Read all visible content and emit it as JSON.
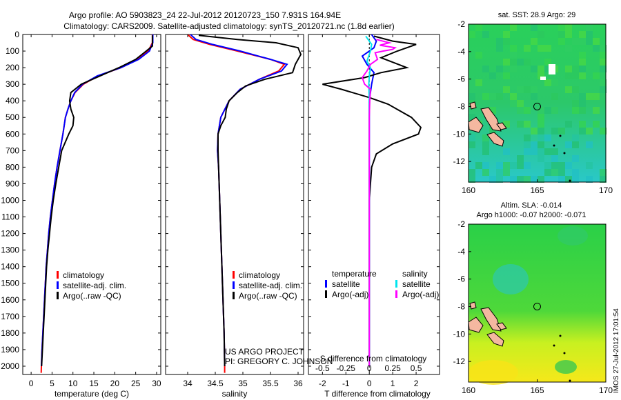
{
  "header": {
    "title_line1": "Argo profile: AO 5903823_24 22-Jul-2012 20120723_150 7.931S 164.94E",
    "title_line2": "Climatology: CARS2009. Satellite-adjusted climatology: synTS_20120721.nc (1.8d earlier)"
  },
  "colors": {
    "climatology": "#ff0000",
    "satellite": "#0000ff",
    "argo": "#000000",
    "satellite_s": "#00e5ee",
    "argo_s": "#ff00ff"
  },
  "chart_data": [
    {
      "type": "line",
      "title": "",
      "xlabel": "temperature (deg C)",
      "ylabel": "",
      "xlim": [
        -2,
        31
      ],
      "ylim": [
        2050,
        0
      ],
      "xticks": [
        0,
        5,
        10,
        15,
        20,
        25,
        30
      ],
      "yticks": [
        0,
        100,
        200,
        300,
        400,
        500,
        600,
        700,
        800,
        900,
        1000,
        1100,
        1200,
        1300,
        1400,
        1500,
        1600,
        1700,
        1800,
        1900,
        2000
      ],
      "legend": {
        "position": "bottom-center",
        "items": [
          "climatology",
          "satellite-adj. clim.",
          "Argo(..raw -QC)"
        ]
      },
      "series": [
        {
          "name": "climatology",
          "color": "#ff0000",
          "points": [
            [
              29,
              0
            ],
            [
              29,
              50
            ],
            [
              28,
              100
            ],
            [
              25.5,
              150
            ],
            [
              21.5,
              200
            ],
            [
              16,
              250
            ],
            [
              12.5,
              300
            ],
            [
              10.5,
              350
            ],
            [
              9.5,
              400
            ],
            [
              8.8,
              450
            ],
            [
              8.2,
              500
            ],
            [
              7.6,
              600
            ],
            [
              6.9,
              700
            ],
            [
              6.2,
              800
            ],
            [
              5.6,
              900
            ],
            [
              5.1,
              1000
            ],
            [
              4.6,
              1100
            ],
            [
              4.2,
              1200
            ],
            [
              3.9,
              1300
            ],
            [
              3.6,
              1400
            ],
            [
              3.4,
              1500
            ],
            [
              3.2,
              1600
            ],
            [
              3,
              1700
            ],
            [
              2.8,
              1800
            ],
            [
              2.6,
              1900
            ],
            [
              2.45,
              2000
            ],
            [
              2.4,
              2040
            ]
          ]
        },
        {
          "name": "satellite-adj. clim.",
          "color": "#0000ff",
          "points": [
            [
              29.1,
              0
            ],
            [
              29.1,
              50
            ],
            [
              28.3,
              100
            ],
            [
              25.7,
              150
            ],
            [
              21.5,
              200
            ],
            [
              15.8,
              250
            ],
            [
              12.3,
              300
            ],
            [
              10.4,
              350
            ],
            [
              9.5,
              400
            ],
            [
              8.8,
              450
            ],
            [
              8.2,
              500
            ],
            [
              7.6,
              600
            ],
            [
              6.9,
              700
            ],
            [
              6.2,
              800
            ],
            [
              5.6,
              900
            ],
            [
              5.1,
              1000
            ],
            [
              4.6,
              1100
            ],
            [
              4.2,
              1200
            ],
            [
              3.9,
              1300
            ],
            [
              3.6,
              1400
            ],
            [
              3.4,
              1500
            ],
            [
              3.2,
              1600
            ],
            [
              3,
              1700
            ],
            [
              2.8,
              1800
            ],
            [
              2.6,
              1900
            ],
            [
              2.45,
              2000
            ]
          ]
        },
        {
          "name": "Argo(..raw -QC)",
          "color": "#000000",
          "points": [
            [
              29,
              5
            ],
            [
              29,
              40
            ],
            [
              29,
              70
            ],
            [
              27,
              110
            ],
            [
              25,
              150
            ],
            [
              21,
              200
            ],
            [
              16.5,
              250
            ],
            [
              12,
              300
            ],
            [
              9.5,
              350
            ],
            [
              9.2,
              400
            ],
            [
              9.5,
              450
            ],
            [
              10.2,
              500
            ],
            [
              10,
              550
            ],
            [
              9,
              600
            ],
            [
              7.3,
              700
            ],
            [
              6.6,
              800
            ],
            [
              5.9,
              900
            ],
            [
              5.3,
              1000
            ],
            [
              4.8,
              1100
            ],
            [
              4.4,
              1200
            ],
            [
              4,
              1300
            ],
            [
              3.7,
              1400
            ],
            [
              3.5,
              1500
            ],
            [
              3.3,
              1600
            ],
            [
              3.1,
              1700
            ],
            [
              2.9,
              1800
            ],
            [
              2.7,
              1900
            ],
            [
              2.5,
              2000
            ]
          ]
        }
      ]
    },
    {
      "type": "line",
      "title": "",
      "xlabel": "salinity",
      "xlim": [
        33.6,
        36.1
      ],
      "ylim": [
        2050,
        0
      ],
      "xticks": [
        34,
        34.5,
        35,
        35.5,
        36
      ],
      "legend": {
        "position": "bottom-center",
        "items": [
          "climatology",
          "satellite-adj. clim.",
          "Argo(..raw -QC)"
        ]
      },
      "annotation": [
        "US ARGO PROJECT",
        "PI: GREGORY C. JOHNSON"
      ],
      "series": [
        {
          "name": "climatology",
          "color": "#ff0000",
          "points": [
            [
              34.0,
              0
            ],
            [
              34.1,
              30
            ],
            [
              34.4,
              60
            ],
            [
              34.9,
              100
            ],
            [
              35.5,
              150
            ],
            [
              35.75,
              180
            ],
            [
              35.65,
              220
            ],
            [
              35.3,
              270
            ],
            [
              34.95,
              330
            ],
            [
              34.75,
              400
            ],
            [
              34.6,
              500
            ],
            [
              34.55,
              600
            ],
            [
              34.54,
              700
            ],
            [
              34.56,
              800
            ],
            [
              34.58,
              1000
            ],
            [
              34.6,
              1200
            ],
            [
              34.62,
              1400
            ],
            [
              34.64,
              1600
            ],
            [
              34.66,
              1800
            ],
            [
              34.67,
              2000
            ],
            [
              34.67,
              2040
            ]
          ]
        },
        {
          "name": "satellite-adj. clim.",
          "color": "#0000ff",
          "points": [
            [
              34.05,
              0
            ],
            [
              34.15,
              30
            ],
            [
              34.45,
              60
            ],
            [
              34.95,
              100
            ],
            [
              35.5,
              150
            ],
            [
              35.8,
              180
            ],
            [
              35.7,
              220
            ],
            [
              35.3,
              270
            ],
            [
              34.95,
              330
            ],
            [
              34.75,
              400
            ],
            [
              34.6,
              500
            ],
            [
              34.55,
              600
            ],
            [
              34.54,
              700
            ],
            [
              34.56,
              800
            ],
            [
              34.58,
              1000
            ],
            [
              34.6,
              1200
            ],
            [
              34.62,
              1400
            ],
            [
              34.64,
              1600
            ],
            [
              34.66,
              1800
            ],
            [
              34.67,
              2000
            ]
          ]
        },
        {
          "name": "Argo(..raw -QC)",
          "color": "#000000",
          "points": [
            [
              34.2,
              5
            ],
            [
              34.9,
              30
            ],
            [
              35.6,
              50
            ],
            [
              36.0,
              80
            ],
            [
              36.05,
              120
            ],
            [
              35.95,
              180
            ],
            [
              35.9,
              230
            ],
            [
              35.4,
              270
            ],
            [
              35.05,
              310
            ],
            [
              34.9,
              350
            ],
            [
              34.75,
              400
            ],
            [
              34.7,
              450
            ],
            [
              34.68,
              500
            ],
            [
              34.6,
              550
            ],
            [
              34.55,
              600
            ],
            [
              34.55,
              700
            ],
            [
              34.56,
              800
            ],
            [
              34.58,
              1000
            ],
            [
              34.6,
              1200
            ],
            [
              34.62,
              1400
            ],
            [
              34.64,
              1600
            ],
            [
              34.66,
              1800
            ],
            [
              34.67,
              2000
            ]
          ]
        }
      ]
    },
    {
      "type": "line",
      "title": "",
      "xlabel": "T difference from climatology",
      "xlabel2": "S difference from climatology",
      "xlim": [
        -2.6,
        3.0
      ],
      "ylim": [
        2050,
        0
      ],
      "xticks": [
        -2,
        -1,
        0,
        1,
        2
      ],
      "xticks2": [
        "-0.5",
        "-0.25",
        "0",
        "0.25",
        "0.5"
      ],
      "legend": {
        "position": "bottom",
        "items": [
          "temperature",
          "satellite",
          "Argo(-adj)",
          "salinity",
          "satellite",
          "Argo(-adj)"
        ]
      },
      "series": [
        {
          "name": "T satellite",
          "color": "#0000ff",
          "points": [
            [
              0.1,
              0
            ],
            [
              0.3,
              40
            ],
            [
              0.2,
              80
            ],
            [
              -0.3,
              130
            ],
            [
              -0.1,
              180
            ],
            [
              0.2,
              230
            ],
            [
              0.1,
              300
            ],
            [
              0,
              400
            ],
            [
              0,
              600
            ],
            [
              0,
              1000
            ],
            [
              0,
              1500
            ],
            [
              0,
              2000
            ]
          ]
        },
        {
          "name": "T Argo(-adj)",
          "color": "#000000",
          "points": [
            [
              0.2,
              10
            ],
            [
              1,
              40
            ],
            [
              2,
              60
            ],
            [
              1.2,
              100
            ],
            [
              0.5,
              140
            ],
            [
              1.6,
              200
            ],
            [
              0.5,
              230
            ],
            [
              -0.2,
              260
            ],
            [
              -2.0,
              300
            ],
            [
              -1.2,
              330
            ],
            [
              0,
              380
            ],
            [
              0.8,
              420
            ],
            [
              1.8,
              500
            ],
            [
              2.2,
              560
            ],
            [
              2.1,
              600
            ],
            [
              1.0,
              660
            ],
            [
              0.3,
              720
            ],
            [
              0.1,
              800
            ],
            [
              0,
              1000
            ],
            [
              0,
              1500
            ],
            [
              0,
              2000
            ]
          ]
        },
        {
          "name": "S satellite",
          "color": "#00e5ee",
          "points": [
            [
              -0.15,
              10
            ],
            [
              0.1,
              60
            ],
            [
              0.05,
              100
            ],
            [
              -0.1,
              160
            ],
            [
              0.05,
              200
            ],
            [
              0,
              250
            ],
            [
              -0.02,
              300
            ],
            [
              0,
              400
            ],
            [
              0,
              600
            ],
            [
              0,
              1000
            ],
            [
              0,
              1500
            ],
            [
              0,
              2000
            ]
          ]
        },
        {
          "name": "S Argo(-adj)",
          "color": "#ff00ff",
          "points": [
            [
              0.3,
              30
            ],
            [
              0.85,
              50
            ],
            [
              0.45,
              65
            ],
            [
              1.1,
              80
            ],
            [
              1.0,
              90
            ],
            [
              0.6,
              100
            ],
            [
              0.25,
              110
            ],
            [
              0.3,
              130
            ],
            [
              0.35,
              150
            ],
            [
              0.05,
              180
            ],
            [
              -0.1,
              220
            ],
            [
              -0.3,
              260
            ],
            [
              -0.2,
              300
            ],
            [
              0.05,
              330
            ],
            [
              0.02,
              400
            ],
            [
              0,
              500
            ],
            [
              0,
              1000
            ],
            [
              0,
              1500
            ],
            [
              0,
              2000
            ]
          ]
        }
      ]
    },
    {
      "type": "heatmap",
      "title": "sat. SST: 28.9 Argo: 29",
      "xlim": [
        160,
        170
      ],
      "ylim": [
        -13.5,
        -2
      ],
      "xticks": [
        160,
        165,
        170
      ],
      "yticks": [
        -2,
        -4,
        -6,
        -8,
        -10,
        -12
      ],
      "marker": [
        165,
        -8
      ]
    },
    {
      "type": "heatmap",
      "title": "Altim. SLA: -0.014",
      "title2": "Argo h1000: -0.07 h2000: -0.071",
      "xlim": [
        160,
        170
      ],
      "ylim": [
        -13.5,
        -2
      ],
      "xticks": [
        160,
        165,
        170
      ],
      "yticks": [
        -2,
        -4,
        -6,
        -8,
        -10,
        -12
      ],
      "marker": [
        165,
        -8
      ]
    }
  ],
  "side_text": "IMOS 27-Jul-2012 17:01:54"
}
